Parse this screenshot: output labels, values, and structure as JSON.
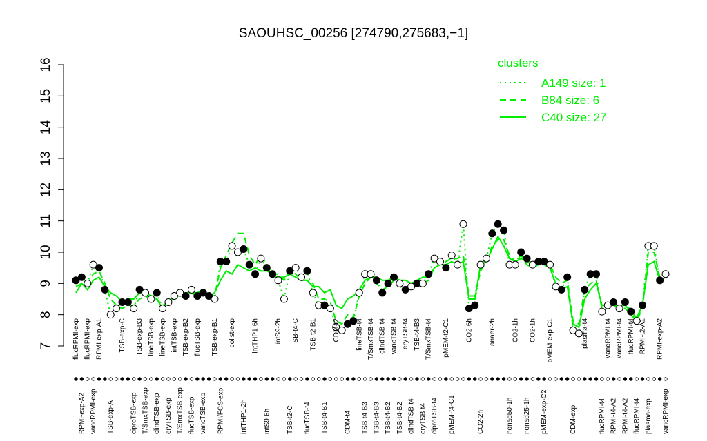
{
  "chart_data": {
    "type": "line",
    "title": "SAOUHSC_00256 [274790,275683,−1]",
    "xlabel": "",
    "ylabel": "",
    "ylim": [
      7,
      16
    ],
    "yticks": [
      "7",
      "8",
      "9",
      "10",
      "11",
      "12",
      "13",
      "14",
      "15",
      "16"
    ],
    "grid": false,
    "legend": {
      "title": "clusters",
      "placement": "top-right",
      "color": "#00ee00",
      "items": [
        {
          "label": "A149 size: 1",
          "style": "dotted"
        },
        {
          "label": "B84 size: 6",
          "style": "dashed"
        },
        {
          "label": "C40 size: 27",
          "style": "solid"
        }
      ]
    },
    "colors": {
      "line": "#00ee00",
      "point_fill_open": "#ffffff",
      "point_fill_solid": "#000000"
    },
    "conditions": [
      {
        "label": "flucRPMI-exp",
        "value": 9.1,
        "filled": true
      },
      {
        "label": "RPMI-exp-A2",
        "value": 9.2,
        "filled": true
      },
      {
        "label": "flucRPMI-exp",
        "value": 9.0,
        "filled": false
      },
      {
        "label": "vancRPMI-exp",
        "value": 9.6,
        "filled": false
      },
      {
        "label": "RPMI-exp-A1",
        "value": 9.5,
        "filled": true
      },
      {
        "label": "",
        "value": 8.8,
        "filled": true
      },
      {
        "label": "TSB-exp-A",
        "value": 8.0,
        "filled": false
      },
      {
        "label": "",
        "value": 8.2,
        "filled": false
      },
      {
        "label": "TSB-exp-C",
        "value": 8.4,
        "filled": true
      },
      {
        "label": "",
        "value": 8.4,
        "filled": true
      },
      {
        "label": "ciproTSB-exp",
        "value": 8.2,
        "filled": false
      },
      {
        "label": "TSB-exp-B3",
        "value": 8.8,
        "filled": true
      },
      {
        "label": "T/SmxTSB-exp",
        "value": 8.7,
        "filled": false
      },
      {
        "label": "lineTSB-exp",
        "value": 8.5,
        "filled": false
      },
      {
        "label": "clindTSB-exp",
        "value": 8.7,
        "filled": true
      },
      {
        "label": "lineTSB-exp",
        "value": 8.2,
        "filled": false
      },
      {
        "label": "eryTSB-exp",
        "value": 8.4,
        "filled": false
      },
      {
        "label": "intTSB-exp",
        "value": 8.6,
        "filled": false
      },
      {
        "label": "T/SmxTSB-exp",
        "value": 8.7,
        "filled": false
      },
      {
        "label": "TSB-exp-B2",
        "value": 8.6,
        "filled": true
      },
      {
        "label": "flucTSB-exp",
        "value": 8.8,
        "filled": false
      },
      {
        "label": "flucTSB-exp",
        "value": 8.6,
        "filled": true
      },
      {
        "label": "vancTSB-exp",
        "value": 8.7,
        "filled": true
      },
      {
        "label": "",
        "value": 8.6,
        "filled": true
      },
      {
        "label": "TSB-exp-B1",
        "value": 8.5,
        "filled": false
      },
      {
        "label": "RPMI/FCS-exp",
        "value": 9.7,
        "filled": true
      },
      {
        "label": "",
        "value": 9.7,
        "filled": true
      },
      {
        "label": "colist-exp",
        "value": 10.2,
        "filled": false
      },
      {
        "label": "",
        "value": 10.0,
        "filled": false
      },
      {
        "label": "intTHP1-2h",
        "value": 10.1,
        "filled": true
      },
      {
        "label": "",
        "value": 9.6,
        "filled": true
      },
      {
        "label": "intTHP1-6h",
        "value": 9.3,
        "filled": true
      },
      {
        "label": "",
        "value": 9.8,
        "filled": false
      },
      {
        "label": "intS9-6h",
        "value": 9.5,
        "filled": true
      },
      {
        "label": "",
        "value": 9.3,
        "filled": true
      },
      {
        "label": "intS9-2h",
        "value": 9.1,
        "filled": false
      },
      {
        "label": "",
        "value": 8.5,
        "filled": false
      },
      {
        "label": "TSB-t2-C",
        "value": 9.4,
        "filled": true
      },
      {
        "label": "TSB-t4-C",
        "value": 9.5,
        "filled": false
      },
      {
        "label": "",
        "value": 9.2,
        "filled": false
      },
      {
        "label": "flucTSB-t4",
        "value": 9.4,
        "filled": true
      },
      {
        "label": "TSB-t2-B1",
        "value": 8.7,
        "filled": false
      },
      {
        "label": "",
        "value": 8.3,
        "filled": false
      },
      {
        "label": "TSB-t4-B1",
        "value": 8.3,
        "filled": true
      },
      {
        "label": "",
        "value": 8.2,
        "filled": false
      },
      {
        "label": "CDM-t2",
        "value": 7.6,
        "filled": false
      },
      {
        "label": "",
        "value": 7.5,
        "filled": false
      },
      {
        "label": "CDM-t4",
        "value": 7.7,
        "filled": true
      },
      {
        "label": "",
        "value": 7.8,
        "filled": true
      },
      {
        "label": "lineTSB-t4",
        "value": 8.7,
        "filled": false
      },
      {
        "label": "TSB-t4-B3",
        "value": 9.3,
        "filled": false
      },
      {
        "label": "T/SmxTSB-t4",
        "value": 9.3,
        "filled": false
      },
      {
        "label": "TSB-t4-B3",
        "value": 9.1,
        "filled": true
      },
      {
        "label": "clindTSB-t4",
        "value": 8.7,
        "filled": true
      },
      {
        "label": "TSB-t4-B2",
        "value": 9.0,
        "filled": true
      },
      {
        "label": "vancTSB-t4",
        "value": 9.2,
        "filled": true
      },
      {
        "label": "TSB-t4-B2",
        "value": 9.0,
        "filled": false
      },
      {
        "label": "eryTSB-t4",
        "value": 8.8,
        "filled": true
      },
      {
        "label": "clindTSB-t4",
        "value": 8.9,
        "filled": false
      },
      {
        "label": "TSB-t4-B3",
        "value": 9.0,
        "filled": true
      },
      {
        "label": "eryTSB-t4",
        "value": 9.0,
        "filled": false
      },
      {
        "label": "T/SmxTSB-t4",
        "value": 9.3,
        "filled": true
      },
      {
        "label": "ciproTSB-t4",
        "value": 9.8,
        "filled": false
      },
      {
        "label": "",
        "value": 9.7,
        "filled": false
      },
      {
        "label": "pMEM-t2-C1",
        "value": 9.5,
        "filled": true
      },
      {
        "label": "pMEM-t4-C1",
        "value": 9.9,
        "filled": false
      },
      {
        "label": "",
        "value": 9.6,
        "filled": false
      },
      {
        "label": "",
        "value": 10.9,
        "filled": false
      },
      {
        "label": "CO2-6h",
        "value": 8.2,
        "filled": true
      },
      {
        "label": "",
        "value": 8.3,
        "filled": true
      },
      {
        "label": "CO2-2h",
        "value": 9.6,
        "filled": false
      },
      {
        "label": "",
        "value": 9.8,
        "filled": false
      },
      {
        "label": "anaer-2h",
        "value": 10.6,
        "filled": true
      },
      {
        "label": "",
        "value": 10.9,
        "filled": true
      },
      {
        "label": "",
        "value": 10.7,
        "filled": true
      },
      {
        "label": "nonad50-1h",
        "value": 9.6,
        "filled": false
      },
      {
        "label": "CO2-1h",
        "value": 9.6,
        "filled": false
      },
      {
        "label": "",
        "value": 10.0,
        "filled": true
      },
      {
        "label": "nonad25-1h",
        "value": 9.8,
        "filled": true
      },
      {
        "label": "CO2-1h",
        "value": 9.6,
        "filled": false
      },
      {
        "label": "",
        "value": 9.7,
        "filled": true
      },
      {
        "label": "pMEM-exp-C2",
        "value": 9.7,
        "filled": true
      },
      {
        "label": "pMEM-exp-C1",
        "value": 9.6,
        "filled": false
      },
      {
        "label": "",
        "value": 8.9,
        "filled": false
      },
      {
        "label": "",
        "value": 8.8,
        "filled": true
      },
      {
        "label": "",
        "value": 9.2,
        "filled": true
      },
      {
        "label": "CDM-exp",
        "value": 7.5,
        "filled": false
      },
      {
        "label": "",
        "value": 7.4,
        "filled": false
      },
      {
        "label": "plasma-t4",
        "value": 8.8,
        "filled": true
      },
      {
        "label": "",
        "value": 9.3,
        "filled": true
      },
      {
        "label": "",
        "value": 9.3,
        "filled": true
      },
      {
        "label": "flucRPMI-t4",
        "value": 8.1,
        "filled": false
      },
      {
        "label": "vancRPMI-t4",
        "value": 8.3,
        "filled": false
      },
      {
        "label": "RPMI-t4-A2",
        "value": 8.4,
        "filled": true
      },
      {
        "label": "vancRPMI-t4",
        "value": 8.2,
        "filled": false
      },
      {
        "label": "RPMI-t4-A2",
        "value": 8.4,
        "filled": true
      },
      {
        "label": "flucRPMI-t4",
        "value": 8.1,
        "filled": true
      },
      {
        "label": "flucRPMI-t4",
        "value": 7.8,
        "filled": false
      },
      {
        "label": "RPMI-t2-A1",
        "value": 8.3,
        "filled": true
      },
      {
        "label": "plasma-exp",
        "value": 10.2,
        "filled": false
      },
      {
        "label": "",
        "value": 10.2,
        "filled": false
      },
      {
        "label": "RPMI-exp-A2",
        "value": 9.1,
        "filled": true
      },
      {
        "label": "vancRPMI-exp",
        "value": 9.3,
        "filled": false
      }
    ],
    "series": [
      {
        "name": "C40 size: 27",
        "style": "solid",
        "values": [
          8.7,
          9.0,
          8.8,
          9.1,
          9.2,
          8.9,
          8.7,
          8.6,
          8.4,
          8.5,
          8.5,
          8.7,
          8.7,
          8.6,
          8.5,
          8.2,
          8.4,
          8.6,
          8.6,
          8.7,
          8.7,
          8.7,
          8.8,
          8.6,
          8.7,
          9.1,
          9.4,
          9.3,
          9.6,
          9.5,
          9.4,
          9.5,
          9.4,
          9.4,
          9.3,
          9.2,
          9.2,
          9.3,
          9.2,
          9.1,
          9.1,
          8.9,
          8.9,
          8.7,
          8.8,
          8.3,
          8.2,
          8.5,
          8.6,
          8.8,
          9.1,
          9.2,
          9.2,
          9.1,
          9.1,
          9.2,
          9.1,
          9.1,
          9.0,
          9.1,
          9.2,
          9.2,
          9.5,
          9.6,
          9.6,
          9.7,
          9.6,
          9.7,
          8.5,
          8.5,
          9.6,
          9.7,
          10.1,
          10.5,
          10.2,
          9.8,
          9.7,
          9.8,
          9.7,
          9.6,
          9.7,
          9.6,
          9.5,
          9.0,
          8.8,
          8.9,
          7.7,
          7.6,
          8.5,
          8.8,
          9.0,
          8.3,
          8.3,
          8.3,
          8.3,
          8.3,
          8.1,
          7.9,
          8.3,
          9.6,
          9.7,
          9.1,
          9.2
        ]
      },
      {
        "name": "B84 size: 6",
        "style": "dashed",
        "values": [
          8.9,
          9.0,
          9.0,
          9.3,
          9.4,
          9.0,
          8.5,
          8.3,
          8.2,
          8.3,
          8.3,
          8.5,
          8.6,
          8.5,
          8.5,
          8.3,
          8.4,
          8.5,
          8.6,
          8.6,
          8.7,
          8.6,
          8.7,
          8.6,
          8.6,
          9.5,
          9.9,
          10.3,
          10.6,
          10.6,
          9.9,
          9.6,
          9.9,
          9.6,
          9.3,
          9.3,
          9.1,
          9.4,
          9.3,
          9.1,
          9.1,
          9.0,
          8.5,
          8.5,
          8.4,
          7.8,
          7.7,
          8.0,
          7.9,
          8.6,
          9.0,
          9.2,
          9.0,
          8.8,
          8.9,
          9.1,
          8.9,
          8.8,
          8.9,
          8.9,
          9.0,
          9.1,
          9.5,
          9.6,
          9.7,
          9.8,
          9.8,
          9.9,
          8.6,
          8.6,
          9.4,
          9.7,
          10.2,
          10.4,
          10.4,
          9.9,
          9.7,
          9.9,
          9.6,
          9.5,
          9.6,
          9.6,
          9.6,
          9.2,
          9.0,
          9.1,
          7.8,
          7.7,
          8.8,
          9.0,
          9.1,
          8.2,
          8.3,
          8.3,
          8.2,
          8.2,
          8.0,
          7.8,
          8.2,
          10.0,
          10.0,
          9.2,
          9.2
        ]
      },
      {
        "name": "A149 size: 1",
        "style": "dotted",
        "values": [
          9.1,
          9.2,
          9.0,
          9.6,
          9.5,
          8.8,
          8.0,
          8.2,
          8.4,
          8.4,
          8.2,
          8.8,
          8.7,
          8.5,
          8.7,
          8.2,
          8.4,
          8.6,
          8.7,
          8.6,
          8.8,
          8.6,
          8.7,
          8.6,
          8.5,
          9.7,
          9.7,
          10.2,
          10.0,
          10.1,
          9.6,
          9.3,
          9.8,
          9.5,
          9.3,
          9.1,
          8.5,
          9.4,
          9.5,
          9.2,
          9.4,
          8.7,
          8.3,
          8.3,
          8.2,
          7.6,
          7.5,
          7.7,
          7.8,
          8.7,
          9.3,
          9.3,
          9.1,
          8.7,
          9.0,
          9.2,
          9.0,
          8.8,
          8.9,
          9.0,
          9.0,
          9.3,
          9.8,
          9.7,
          9.5,
          9.9,
          9.6,
          10.9,
          8.2,
          8.3,
          9.6,
          9.8,
          10.6,
          10.9,
          10.7,
          9.6,
          9.6,
          10.0,
          9.8,
          9.6,
          9.7,
          9.7,
          9.6,
          8.9,
          8.8,
          9.2,
          7.5,
          7.4,
          8.8,
          9.3,
          9.3,
          8.1,
          8.3,
          8.4,
          8.2,
          8.4,
          8.1,
          7.8,
          8.3,
          10.2,
          10.2,
          9.1,
          9.3
        ]
      }
    ]
  }
}
